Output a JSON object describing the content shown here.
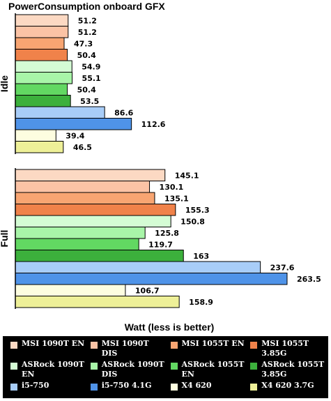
{
  "chart_data": {
    "type": "bar",
    "orientation": "horizontal",
    "title": "PowerConsumption onboard GFX",
    "xlabel": "Watt (less is better)",
    "groups": [
      {
        "name": "Idle",
        "values": [
          51.2,
          51.2,
          47.3,
          50.4,
          54.9,
          55.1,
          50.4,
          53.5,
          86.6,
          112.6,
          39.4,
          46.5
        ]
      },
      {
        "name": "Full",
        "values": [
          145.1,
          130.1,
          135.1,
          155.3,
          150.8,
          125.8,
          119.7,
          163,
          237.6,
          263.5,
          106.7,
          158.9
        ]
      }
    ],
    "series": [
      {
        "name": "MSI 1090T EN",
        "color": "#fcd9c3"
      },
      {
        "name": "MSI 1090T DIS",
        "color": "#fbc3a5"
      },
      {
        "name": "MSI 1055T EN",
        "color": "#f8a572"
      },
      {
        "name": "MSI 1055T 3.85G",
        "color": "#f0824a"
      },
      {
        "name": "ASRock 1090T EN",
        "color": "#d4fcd4"
      },
      {
        "name": "ASRock 1090T DIS",
        "color": "#a8f5a8"
      },
      {
        "name": "ASRock 1055T EN",
        "color": "#62d862"
      },
      {
        "name": "ASRock 1055T 3.85G",
        "color": "#3cb03c"
      },
      {
        "name": "i5-750",
        "color": "#a8cdf8"
      },
      {
        "name": "i5-750 4.1G",
        "color": "#4f93e8"
      },
      {
        "name": "X4 620",
        "color": "#fdfde0"
      },
      {
        "name": "X4 620 3.7G",
        "color": "#eef098"
      }
    ],
    "legend_position": "bottom",
    "grid": false
  }
}
